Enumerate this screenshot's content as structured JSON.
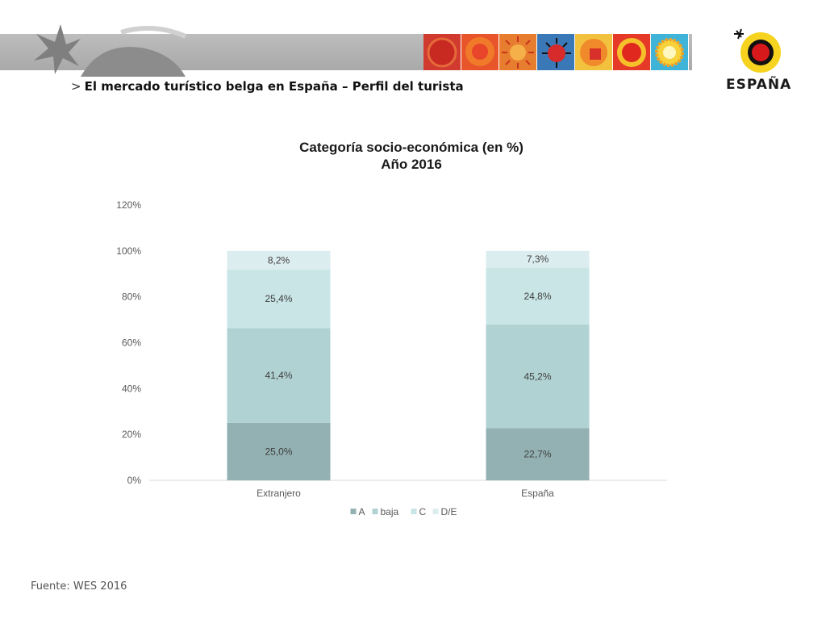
{
  "header": {
    "subtitle_marker": ">",
    "subtitle": "El mercado turístico belga en España – Perfil del turista"
  },
  "logo": {
    "text": "ESPAÑA"
  },
  "footer": {
    "source": "Fuente: WES 2016"
  },
  "chart_data": {
    "type": "bar",
    "stacked": true,
    "title": [
      "Categoría socio-económica (en %)",
      "Año 2016"
    ],
    "categories": [
      "Extranjero",
      "España"
    ],
    "series": [
      {
        "name": "A",
        "values": [
          25.0,
          22.7
        ],
        "labels": [
          "25,0%",
          "22,7%"
        ],
        "color": "#93b1b2"
      },
      {
        "name": "baja",
        "values": [
          41.4,
          45.2
        ],
        "labels": [
          "41,4%",
          "45,2%"
        ],
        "color": "#b1d2d3"
      },
      {
        "name": "C",
        "values": [
          25.4,
          24.8
        ],
        "labels": [
          "25,4%",
          "24,8%"
        ],
        "color": "#c9e5e6"
      },
      {
        "name": "D/E",
        "values": [
          8.2,
          7.3
        ],
        "labels": [
          "8,2%",
          "7,3%"
        ],
        "color": "#dcedef"
      }
    ],
    "ylim": [
      0,
      120
    ],
    "yticks": [
      "0%",
      "20%",
      "40%",
      "60%",
      "80%",
      "100%",
      "120%"
    ],
    "grid": false,
    "legend": "bottom"
  }
}
